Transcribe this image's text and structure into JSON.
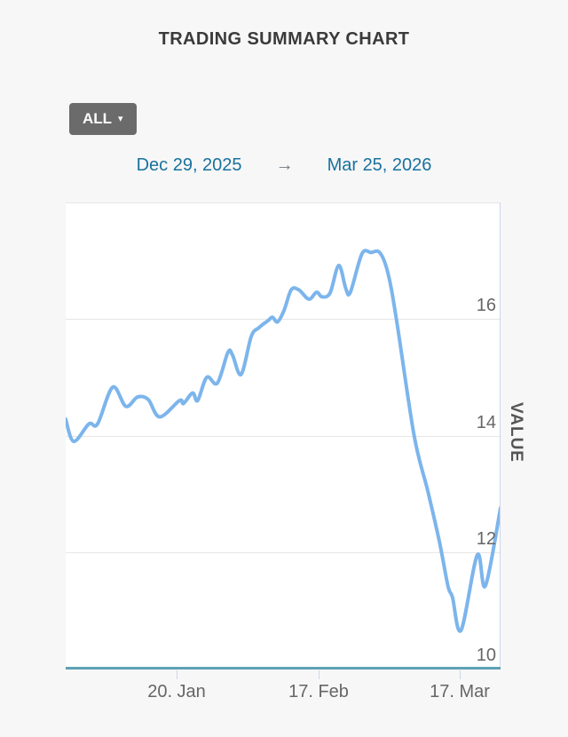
{
  "page": {
    "background": "#f7f7f7"
  },
  "header": {
    "title": "TRADING SUMMARY CHART"
  },
  "controls": {
    "range_button": {
      "label": "ALL",
      "caret": "▾"
    },
    "date_from": "Dec 29, 2025",
    "date_arrow": "→",
    "date_to": "Mar 25, 2026"
  },
  "chart_data": {
    "type": "line",
    "title": "",
    "x_axis": {
      "start_date": "Dec 29, 2025",
      "end_date": "Mar 25, 2026",
      "domain_days": [
        0,
        86
      ],
      "ticks": [
        {
          "day": 22,
          "label": "20. Jan"
        },
        {
          "day": 50,
          "label": "17. Feb"
        },
        {
          "day": 78,
          "label": "17. Mar"
        }
      ]
    },
    "y_axis": {
      "title": "VALUE",
      "min": 10,
      "max": 18,
      "tick_interval": 2,
      "ticks": [
        {
          "value": 10,
          "label": "10"
        },
        {
          "value": 12,
          "label": "12"
        },
        {
          "value": 14,
          "label": "14"
        },
        {
          "value": 16,
          "label": "16"
        }
      ],
      "grid_values": [
        12,
        14,
        16,
        18
      ]
    },
    "series": [
      {
        "name": "VALUE",
        "color": "#7cb5ec",
        "points": [
          [
            0,
            14.28
          ],
          [
            1.6,
            13.9
          ],
          [
            4.6,
            14.2
          ],
          [
            6.3,
            14.2
          ],
          [
            9.3,
            14.83
          ],
          [
            11.9,
            14.5
          ],
          [
            14.2,
            14.66
          ],
          [
            16.3,
            14.62
          ],
          [
            18.6,
            14.32
          ],
          [
            22.5,
            14.6
          ],
          [
            23.3,
            14.55
          ],
          [
            25.1,
            14.73
          ],
          [
            26.1,
            14.6
          ],
          [
            27.9,
            15.0
          ],
          [
            30.0,
            14.9
          ],
          [
            32.1,
            15.43
          ],
          [
            33.0,
            15.38
          ],
          [
            34.7,
            15.05
          ],
          [
            36.7,
            15.7
          ],
          [
            38.2,
            15.85
          ],
          [
            40.0,
            15.97
          ],
          [
            40.9,
            16.03
          ],
          [
            41.9,
            15.95
          ],
          [
            43.2,
            16.15
          ],
          [
            44.6,
            16.5
          ],
          [
            46.1,
            16.5
          ],
          [
            48.1,
            16.34
          ],
          [
            49.6,
            16.46
          ],
          [
            50.7,
            16.38
          ],
          [
            52.3,
            16.45
          ],
          [
            54.0,
            16.92
          ],
          [
            55.4,
            16.52
          ],
          [
            56.3,
            16.46
          ],
          [
            58.6,
            17.12
          ],
          [
            60.4,
            17.14
          ],
          [
            62.1,
            17.14
          ],
          [
            63.7,
            16.8
          ],
          [
            65.4,
            16.0
          ],
          [
            68.9,
            14.0
          ],
          [
            71.6,
            13.05
          ],
          [
            73.9,
            12.18
          ],
          [
            75.6,
            11.42
          ],
          [
            76.5,
            11.22
          ],
          [
            78.2,
            10.66
          ],
          [
            81.4,
            11.95
          ],
          [
            83.0,
            11.42
          ],
          [
            86,
            12.76
          ]
        ]
      }
    ],
    "colors": {
      "line": "#7cb5ec",
      "grid": "#e6e6e6",
      "x_axis_line": "#5ea1b5",
      "y_axis_line": "#ccd6eb",
      "tick_mark": "#ccd6eb",
      "axis_label": "#666666"
    },
    "legend": "none",
    "grid": "horizontal"
  }
}
